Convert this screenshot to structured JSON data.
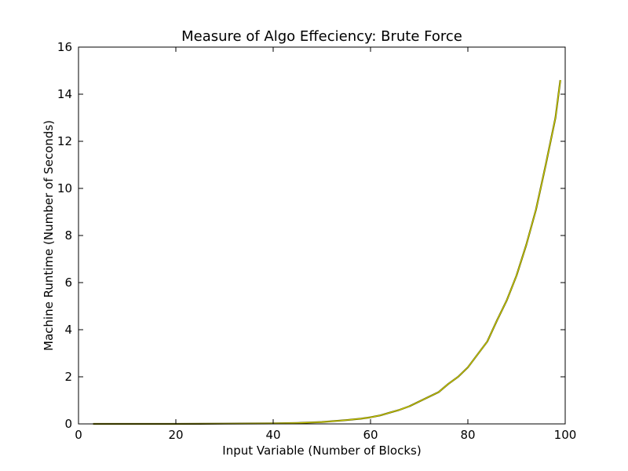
{
  "chart_data": {
    "type": "line",
    "title": "Measure of Algo Effeciency: Brute Force",
    "xlabel": "Input Variable (Number of Blocks)",
    "ylabel": "Machine Runtime (Number of Seconds)",
    "xlim": [
      0,
      100
    ],
    "ylim": [
      0,
      16
    ],
    "xticks": [
      "0",
      "20",
      "40",
      "60",
      "80",
      "100"
    ],
    "yticks": [
      "0",
      "2",
      "4",
      "6",
      "8",
      "10",
      "12",
      "14",
      "16"
    ],
    "grid": false,
    "legend": "none",
    "series": [
      {
        "color": "#c8c800",
        "x": [
          3,
          10,
          20,
          30,
          40,
          45,
          50,
          55,
          58,
          60,
          62,
          64,
          66,
          68,
          70,
          72,
          74,
          76,
          78,
          80,
          82,
          84,
          86,
          88,
          90,
          92,
          94,
          96,
          98,
          99
        ],
        "y": [
          0.0,
          0.0,
          0.0,
          0.01,
          0.02,
          0.04,
          0.08,
          0.16,
          0.22,
          0.28,
          0.36,
          0.48,
          0.6,
          0.75,
          0.95,
          1.15,
          1.35,
          1.7,
          2.0,
          2.4,
          2.95,
          3.5,
          4.4,
          5.25,
          6.3,
          7.6,
          9.1,
          11.0,
          13.0,
          14.6
        ]
      }
    ]
  }
}
